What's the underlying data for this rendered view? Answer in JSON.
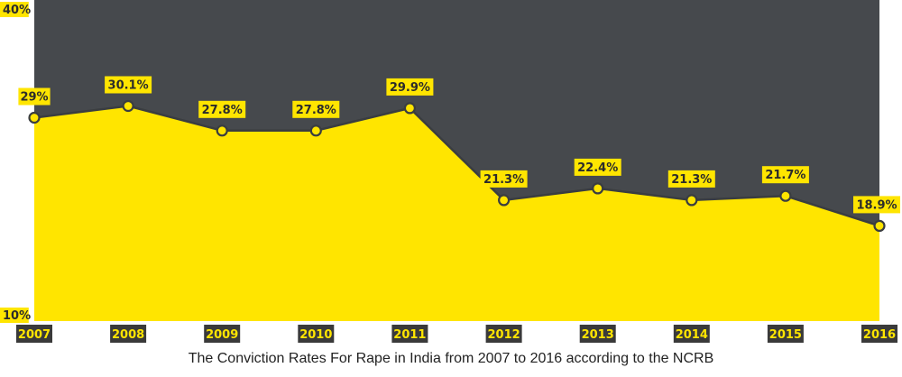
{
  "chart_data": {
    "type": "area",
    "title": "",
    "xlabel": "",
    "ylabel": "",
    "categories": [
      "2007",
      "2008",
      "2009",
      "2010",
      "2011",
      "2012",
      "2013",
      "2014",
      "2015",
      "2016"
    ],
    "series": [
      {
        "values": [
          29,
          30.1,
          27.8,
          27.8,
          29.9,
          21.3,
          22.4,
          21.3,
          21.7,
          18.9
        ]
      }
    ],
    "data_labels": [
      "29%",
      "30.1%",
      "27.8%",
      "27.8%",
      "29.9%",
      "21.3%",
      "22.4%",
      "21.3%",
      "21.7%",
      "18.9%"
    ],
    "ylim": [
      10,
      40
    ],
    "y_tick_labels": {
      "max": "40%",
      "min": "10%"
    },
    "grid": false,
    "legend": "none"
  },
  "caption": "The Conviction Rates For Rape in India from 2007 to 2016 according to the NCRB",
  "colors": {
    "background": "#46494d",
    "area_fill": "#ffe500",
    "line": "#3a3d40",
    "label_box": "#ffe500",
    "label_text": "#2b2b2b",
    "year_box": "#3a3a3a",
    "year_text": "#ffe500"
  }
}
